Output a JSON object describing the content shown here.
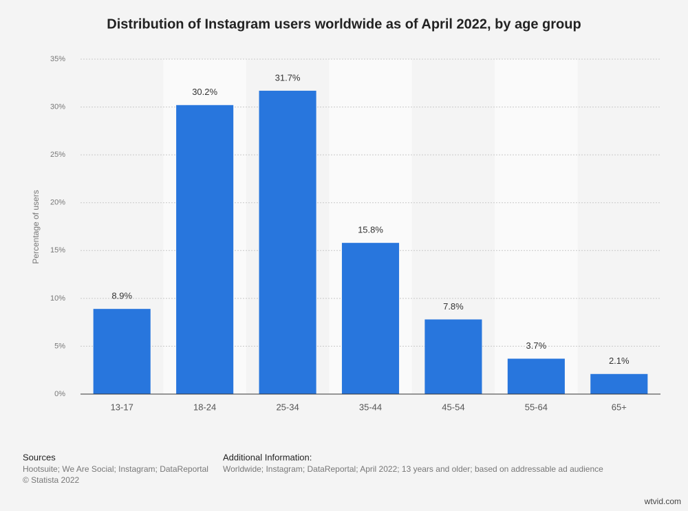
{
  "chart_data": {
    "type": "bar",
    "title": "Distribution of Instagram users worldwide as of April 2022, by age group",
    "y_label": "Percentage of users",
    "categories": [
      "13-17",
      "18-24",
      "25-34",
      "35-44",
      "45-54",
      "55-64",
      "65+"
    ],
    "values": [
      8.9,
      30.2,
      31.7,
      15.8,
      7.8,
      3.7,
      2.1
    ],
    "value_labels": [
      "8.9%",
      "30.2%",
      "31.7%",
      "15.8%",
      "7.8%",
      "3.7%",
      "2.1%"
    ],
    "color": "#2876dd",
    "ylim": [
      0,
      35
    ],
    "yticks": [
      {
        "value": 0,
        "label": "0%"
      },
      {
        "value": 5,
        "label": "5%"
      },
      {
        "value": 10,
        "label": "10%"
      },
      {
        "value": 15,
        "label": "15%"
      },
      {
        "value": 20,
        "label": "20%"
      },
      {
        "value": 25,
        "label": "25%"
      },
      {
        "value": 30,
        "label": "30%"
      },
      {
        "value": 35,
        "label": "35%"
      }
    ],
    "grid": true
  },
  "footer": {
    "sources_heading": "Sources",
    "sources": "Hootsuite; We Are Social; Instagram; DataReportal",
    "copyright": "© Statista 2022",
    "info_heading": "Additional Information:",
    "info": "Worldwide; Instagram; DataReportal; April 2022; 13 years and older; based on addressable ad audience",
    "watermark": "wtvid.com"
  }
}
